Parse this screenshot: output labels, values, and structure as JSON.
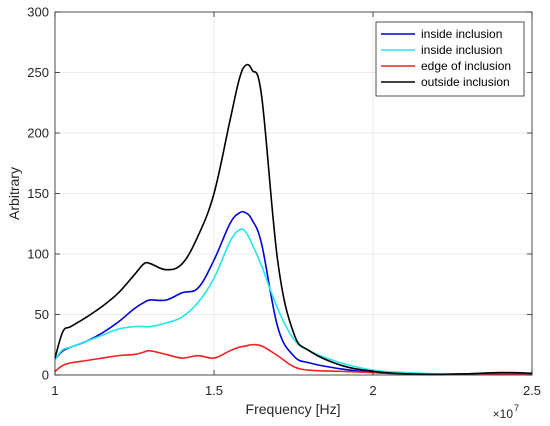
{
  "chart_data": {
    "type": "line",
    "title": "",
    "xlabel": "Frequency [Hz]",
    "ylabel": "Arbitrary",
    "x_multiplier_label": "×10",
    "x_multiplier_exponent": "7",
    "xlim": [
      1.0,
      2.5
    ],
    "ylim": [
      0,
      300
    ],
    "x_ticks": [
      1.0,
      1.5,
      2.0,
      2.5
    ],
    "x_tick_labels": [
      "1",
      "1.5",
      "2",
      "2.5"
    ],
    "y_ticks": [
      0,
      50,
      100,
      150,
      200,
      250,
      300
    ],
    "y_tick_labels": [
      "0",
      "50",
      "100",
      "150",
      "200",
      "250",
      "300"
    ],
    "grid": true,
    "legend_position": "top-right",
    "x": [
      1.0,
      1.025,
      1.05,
      1.1,
      1.15,
      1.2,
      1.25,
      1.28,
      1.3,
      1.35,
      1.4,
      1.45,
      1.5,
      1.55,
      1.58,
      1.6,
      1.62,
      1.65,
      1.7,
      1.75,
      1.8,
      1.9,
      2.0,
      2.1,
      2.2,
      2.3,
      2.4,
      2.5
    ],
    "series": [
      {
        "name": "inside inclusion",
        "color": "#0000dd",
        "values": [
          13,
          20,
          23,
          28,
          35,
          44,
          55,
          60,
          62,
          62,
          68,
          72,
          95,
          125,
          134,
          134,
          128,
          108,
          40,
          16,
          10,
          5,
          2,
          1,
          0.5,
          1,
          1.5,
          1
        ]
      },
      {
        "name": "inside inclusion",
        "color": "#22e5ee",
        "values": [
          13,
          21,
          23,
          28,
          33,
          38,
          40,
          40,
          40,
          43,
          48,
          60,
          80,
          110,
          120,
          118,
          108,
          90,
          55,
          30,
          20,
          10,
          4,
          2,
          1,
          1,
          1,
          1
        ]
      },
      {
        "name": "edge of inclusion",
        "color": "#ee2222",
        "values": [
          3,
          8,
          10,
          12,
          14,
          16,
          17,
          19,
          20,
          17,
          14,
          16,
          14,
          20,
          23,
          24,
          25,
          24,
          16,
          7,
          4,
          3,
          2,
          1,
          0.5,
          1,
          1,
          1
        ]
      },
      {
        "name": "outside inclusion",
        "color": "#000000",
        "values": [
          14,
          36,
          40,
          48,
          57,
          68,
          83,
          92,
          92,
          87,
          92,
          115,
          150,
          210,
          245,
          256,
          252,
          230,
          95,
          35,
          20,
          8,
          3,
          1,
          0.5,
          1,
          2,
          1.5
        ]
      }
    ]
  }
}
